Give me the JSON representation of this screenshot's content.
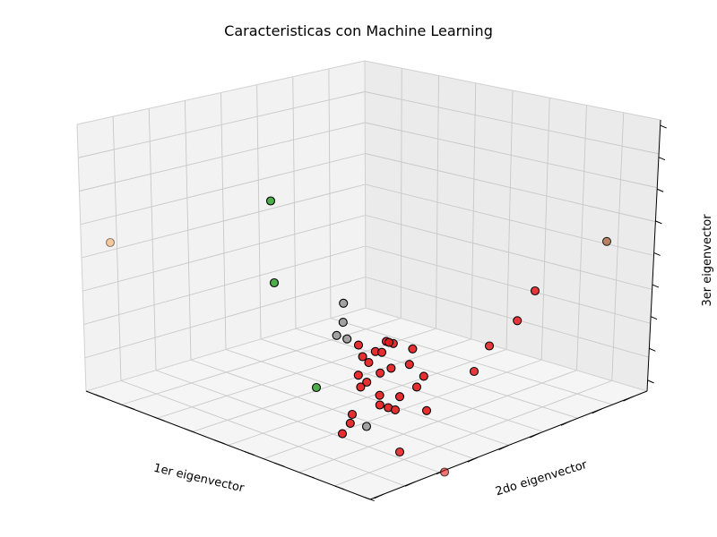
{
  "chart_data": {
    "type": "scatter",
    "projection": "3d",
    "title": "Caracteristicas con Machine Learning",
    "xlabel": "1er eigenvector",
    "ylabel": "2do eigenvector",
    "zlabel": "3er eigenvector",
    "tick_labels_visible": false,
    "grid": true,
    "colors": {
      "red_cluster": "#e41a1c",
      "gray_cluster": "#999999",
      "green_cluster": "#4daf4a",
      "orange_point": "#ff7f00",
      "brown_point": "#a65628",
      "marker_edge": "#000000"
    },
    "points": [
      {
        "x": -1.0,
        "y": 0.55,
        "z": 0.55,
        "color": "#ff7f00",
        "alpha": 0.35
      },
      {
        "x": 0.72,
        "y": -0.95,
        "z": 0.88,
        "color": "#a65628",
        "alpha": 0.7
      },
      {
        "x": -0.35,
        "y": 0.2,
        "z": 0.95,
        "color": "#4daf4a",
        "alpha": 1.0
      },
      {
        "x": -0.4,
        "y": 0.1,
        "z": 0.25,
        "color": "#4daf4a",
        "alpha": 1.0
      },
      {
        "x": -0.2,
        "y": 0.05,
        "z": -0.75,
        "color": "#4daf4a",
        "alpha": 1.0
      },
      {
        "x": 0.6,
        "y": -0.55,
        "z": 0.25,
        "color": "#e41a1c",
        "alpha": 0.85
      },
      {
        "x": 0.55,
        "y": -0.48,
        "z": -0.05,
        "color": "#e41a1c",
        "alpha": 0.85
      },
      {
        "x": 0.45,
        "y": -0.4,
        "z": -0.3,
        "color": "#e41a1c",
        "alpha": 0.85
      },
      {
        "x": 0.4,
        "y": -0.35,
        "z": -0.55,
        "color": "#e41a1c",
        "alpha": 0.85
      },
      {
        "x": 0.12,
        "y": -0.05,
        "z": -0.35,
        "color": "#e41a1c",
        "alpha": 0.9
      },
      {
        "x": 0.08,
        "y": -0.02,
        "z": -0.45,
        "color": "#e41a1c",
        "alpha": 0.9
      },
      {
        "x": 0.05,
        "y": -0.01,
        "z": -0.55,
        "color": "#e41a1c",
        "alpha": 0.9
      },
      {
        "x": 0.1,
        "y": -0.03,
        "z": -0.65,
        "color": "#e41a1c",
        "alpha": 0.9
      },
      {
        "x": 0.06,
        "y": 0.02,
        "z": -0.75,
        "color": "#e41a1c",
        "alpha": 0.9
      },
      {
        "x": 0.14,
        "y": -0.06,
        "z": -0.6,
        "color": "#e41a1c",
        "alpha": 0.9
      },
      {
        "x": 0.03,
        "y": 0.01,
        "z": -0.5,
        "color": "#e41a1c",
        "alpha": 0.9
      },
      {
        "x": 0.09,
        "y": -0.04,
        "z": -0.85,
        "color": "#e41a1c",
        "alpha": 0.9
      },
      {
        "x": 0.11,
        "y": -0.08,
        "z": -0.95,
        "color": "#e41a1c",
        "alpha": 0.9
      },
      {
        "x": 0.0,
        "y": 0.05,
        "z": -1.05,
        "color": "#e41a1c",
        "alpha": 0.9
      },
      {
        "x": 0.2,
        "y": -0.12,
        "z": -0.55,
        "color": "#e41a1c",
        "alpha": 0.9
      },
      {
        "x": 0.22,
        "y": -0.15,
        "z": -0.75,
        "color": "#e41a1c",
        "alpha": 0.9
      },
      {
        "x": 0.16,
        "y": -0.1,
        "z": -0.85,
        "color": "#e41a1c",
        "alpha": 0.9
      },
      {
        "x": 0.02,
        "y": 0.03,
        "z": -0.68,
        "color": "#e41a1c",
        "alpha": 0.9
      },
      {
        "x": 0.18,
        "y": -0.02,
        "z": -0.4,
        "color": "#e41a1c",
        "alpha": 0.9
      },
      {
        "x": 0.13,
        "y": 0.0,
        "z": -0.48,
        "color": "#e41a1c",
        "alpha": 0.9
      },
      {
        "x": 0.07,
        "y": -0.07,
        "z": -0.92,
        "color": "#e41a1c",
        "alpha": 0.9
      },
      {
        "x": 0.04,
        "y": 0.04,
        "z": -0.8,
        "color": "#e41a1c",
        "alpha": 0.9
      },
      {
        "x": 0.01,
        "y": 0.08,
        "z": -1.15,
        "color": "#e41a1c",
        "alpha": 0.9
      },
      {
        "x": -0.02,
        "y": 0.1,
        "z": -1.25,
        "color": "#e41a1c",
        "alpha": 0.9
      },
      {
        "x": 0.24,
        "y": -0.2,
        "z": -0.95,
        "color": "#e41a1c",
        "alpha": 0.9
      },
      {
        "x": 0.17,
        "y": -0.05,
        "z": -1.0,
        "color": "#e41a1c",
        "alpha": 0.9
      },
      {
        "x": 0.28,
        "y": -0.12,
        "z": -0.68,
        "color": "#e41a1c",
        "alpha": 0.9
      },
      {
        "x": 0.26,
        "y": -0.06,
        "z": -0.45,
        "color": "#e41a1c",
        "alpha": 0.9
      },
      {
        "x": 0.1,
        "y": -0.1,
        "z": -0.33,
        "color": "#e41a1c",
        "alpha": 0.9
      },
      {
        "x": 0.0,
        "y": 0.0,
        "z": -0.38,
        "color": "#e41a1c",
        "alpha": 0.9
      },
      {
        "x": -0.05,
        "y": 0.02,
        "z": -0.32,
        "color": "#999999",
        "alpha": 0.9
      },
      {
        "x": -0.08,
        "y": 0.06,
        "z": -0.3,
        "color": "#999999",
        "alpha": 0.9
      },
      {
        "x": -0.03,
        "y": 0.08,
        "z": -0.2,
        "color": "#999999",
        "alpha": 0.9
      },
      {
        "x": 0.0,
        "y": 0.12,
        "z": -0.05,
        "color": "#999999",
        "alpha": 0.9
      },
      {
        "x": 0.15,
        "y": 0.15,
        "z": -1.25,
        "color": "#999999",
        "alpha": 0.9
      },
      {
        "x": 0.3,
        "y": 0.1,
        "z": -1.5,
        "color": "#e41a1c",
        "alpha": 0.85
      },
      {
        "x": 0.55,
        "y": 0.1,
        "z": -1.75,
        "color": "#e41a1c",
        "alpha": 0.6
      }
    ]
  }
}
